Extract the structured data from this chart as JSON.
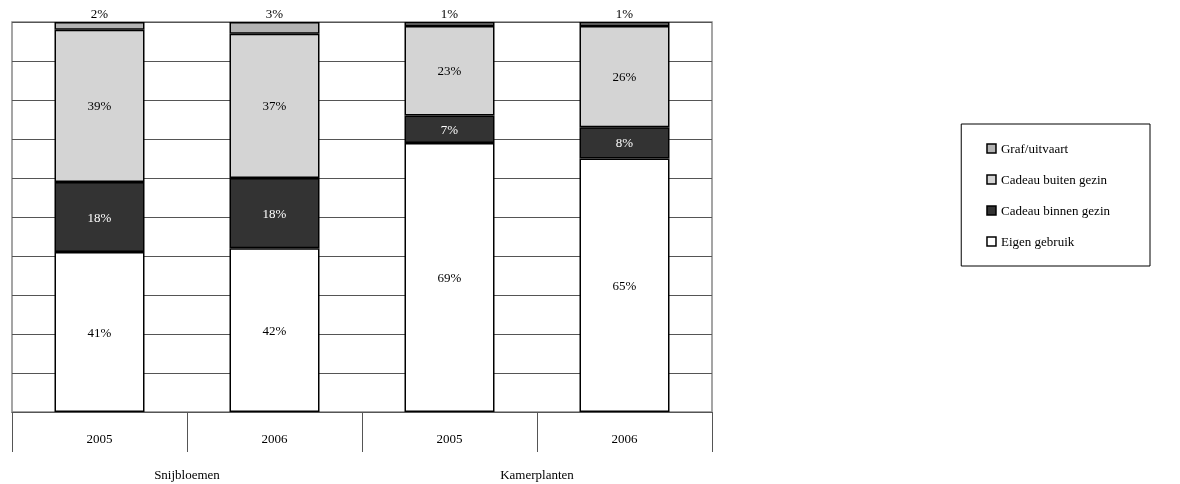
{
  "chart_data": {
    "type": "bar",
    "stacked": true,
    "categories": [
      "2005",
      "2006",
      "2005",
      "2006"
    ],
    "annotations": [
      "Snijbloemen",
      "Kamerplanten"
    ],
    "series": [
      {
        "name": "Eigen gebruik",
        "color": "#ffffff",
        "values": [
          41,
          42,
          69,
          65
        ],
        "value_labels": [
          "41%",
          "42%",
          "69%",
          "65%"
        ]
      },
      {
        "name": "Cadeau binnen gezin",
        "color": "#333333",
        "values": [
          18,
          18,
          7,
          8
        ],
        "value_labels": [
          "18%",
          "18%",
          "7%",
          "8%"
        ]
      },
      {
        "name": "Cadeau buiten gezin",
        "color": "#d4d4d4",
        "values": [
          39,
          37,
          23,
          26
        ],
        "value_labels": [
          "39%",
          "37%",
          "23%",
          "26%"
        ]
      },
      {
        "name": "Graf/uitvaart",
        "color": "#b3b3b3",
        "values": [
          2,
          3,
          1,
          1
        ],
        "value_labels": [
          "2%",
          "3%",
          "1%",
          "1%"
        ]
      }
    ],
    "tick_labels": "x",
    "grid": "y",
    "legend": "right"
  }
}
